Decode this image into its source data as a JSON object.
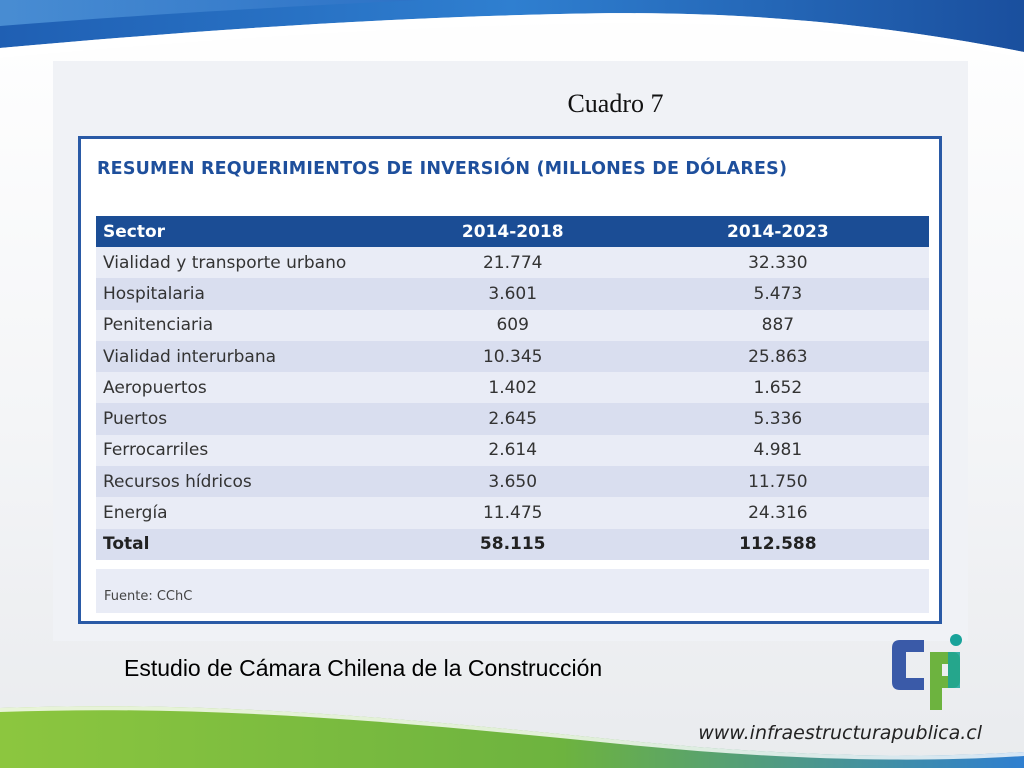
{
  "slide": {
    "cuadro_title": "Cuadro 7",
    "caption": "Estudio de Cámara Chilena de la Construcción",
    "website": "www.infraestructurapublica.cl",
    "logo_icon": "cpi-logo-icon",
    "colors": {
      "accent_blue": "#1b4d95",
      "heading_blue": "#1e4f9c",
      "frame_blue": "#2a5aa6",
      "logo_blue": "#3a5aa8",
      "logo_green": "#6db33f",
      "logo_teal": "#19a39a",
      "wave_green": "#8cc63f",
      "wave_blue": "#1f5fb3"
    }
  },
  "table": {
    "heading": "RESUMEN REQUERIMIENTOS DE INVERSIÓN (MILLONES DE DÓLARES)",
    "columns": [
      "Sector",
      "2014-2018",
      "2014-2023"
    ],
    "rows": [
      [
        "Vialidad y transporte urbano",
        "21.774",
        "32.330"
      ],
      [
        "Hospitalaria",
        "3.601",
        "5.473"
      ],
      [
        "Penitenciaria",
        "609",
        "887"
      ],
      [
        "Vialidad interurbana",
        "10.345",
        "25.863"
      ],
      [
        "Aeropuertos",
        "1.402",
        "1.652"
      ],
      [
        "Puertos",
        "2.645",
        "5.336"
      ],
      [
        "Ferrocarriles",
        "2.614",
        "4.981"
      ],
      [
        "Recursos hídricos",
        "3.650",
        "11.750"
      ],
      [
        "Energía",
        "11.475",
        "24.316"
      ]
    ],
    "total": [
      "Total",
      "58.115",
      "112.588"
    ],
    "source": "Fuente: CChC"
  }
}
